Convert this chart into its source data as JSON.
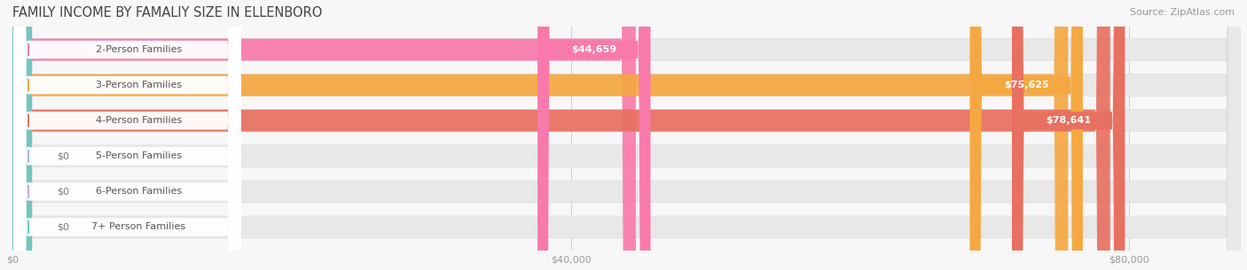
{
  "title": "FAMILY INCOME BY FAMALIY SIZE IN ELLENBORO",
  "source": "Source: ZipAtlas.com",
  "categories": [
    "2-Person Families",
    "3-Person Families",
    "4-Person Families",
    "5-Person Families",
    "6-Person Families",
    "7+ Person Families"
  ],
  "values": [
    44659,
    75625,
    78641,
    0,
    0,
    0
  ],
  "bar_colors": [
    "#f97aaa",
    "#f5a842",
    "#e87060",
    "#a8b8d8",
    "#c4a8d4",
    "#6ec8c0"
  ],
  "value_labels": [
    "$44,659",
    "$75,625",
    "$78,641",
    "$0",
    "$0",
    "$0"
  ],
  "xmax": 88000,
  "xticks": [
    0,
    40000,
    80000
  ],
  "xtick_labels": [
    "$0",
    "$40,000",
    "$80,000"
  ],
  "background_color": "#f7f7f7",
  "bar_bg_color": "#e8e8e8",
  "title_fontsize": 10.5,
  "source_fontsize": 8,
  "label_fontsize": 8,
  "value_fontsize": 8
}
